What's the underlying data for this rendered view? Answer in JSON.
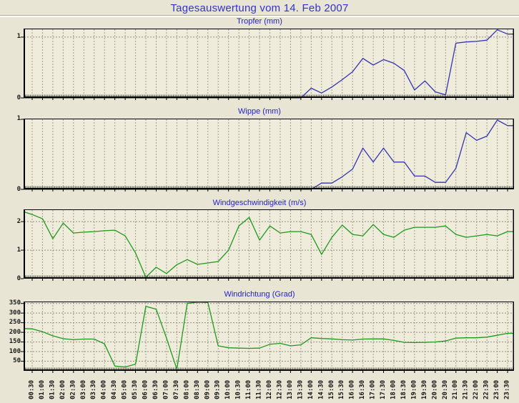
{
  "page": {
    "title": "Tagesauswertung vom 14. Feb 2007"
  },
  "colors": {
    "page_background": "#e8e5d4",
    "plot_background": "#efecdc",
    "title_blue": "#3333cc",
    "chart_title_blue": "#2323c8",
    "rain_line_blue": "#3434b4",
    "wind_line_green": "#1d991d",
    "grid_gray": "#a19e8e",
    "axis_black": "#000000"
  },
  "x_labels": [
    "00:30",
    "01:00",
    "01:30",
    "02:00",
    "02:30",
    "03:00",
    "03:30",
    "04:00",
    "04:30",
    "05:00",
    "05:30",
    "06:00",
    "06:30",
    "07:00",
    "07:30",
    "08:00",
    "08:30",
    "09:00",
    "09:30",
    "10:00",
    "10:30",
    "11:00",
    "11:30",
    "12:00",
    "12:30",
    "13:00",
    "13:30",
    "14:00",
    "14:30",
    "15:00",
    "15:30",
    "16:00",
    "16:30",
    "17:00",
    "17:30",
    "18:00",
    "18:30",
    "19:00",
    "19:30",
    "20:00",
    "20:30",
    "21:00",
    "21:30",
    "22:00",
    "22:30",
    "23:00",
    "23:30"
  ],
  "chart_data": [
    {
      "type": "line",
      "title": "Tropfer (mm)",
      "ylabel": "mm",
      "color": "#3434b4",
      "ylim": [
        0,
        1.14
      ],
      "yticks": [
        {
          "v": 1,
          "label": "1"
        },
        {
          "v": 0,
          "label": "0"
        }
      ],
      "gridlines": [
        1
      ],
      "edge_start": 0,
      "values": [
        0,
        0,
        0,
        0,
        0,
        0,
        0,
        0,
        0,
        0,
        0,
        0,
        0,
        0,
        0,
        0,
        0,
        0,
        0,
        0,
        0,
        0,
        0,
        0,
        0,
        0,
        0,
        0.16,
        0.08,
        0.18,
        0.3,
        0.43,
        0.65,
        0.54,
        0.63,
        0.57,
        0.45,
        0.13,
        0.28,
        0.1,
        0.05,
        0.9,
        0.92,
        0.93,
        0.95,
        1.12,
        1.05
      ]
    },
    {
      "type": "line",
      "title": "Wippe (mm)",
      "ylabel": "mm",
      "color": "#3434b4",
      "ylim": [
        0,
        1.01
      ],
      "yticks": [
        {
          "v": 1,
          "label": "1"
        },
        {
          "v": 0,
          "label": "0"
        }
      ],
      "gridlines": [],
      "edge_start": 0,
      "values": [
        0,
        0,
        0,
        0,
        0,
        0,
        0,
        0,
        0,
        0,
        0,
        0,
        0,
        0,
        0,
        0,
        0,
        0,
        0,
        0,
        0,
        0,
        0,
        0,
        0,
        0,
        0,
        0,
        0.09,
        0.09,
        0.18,
        0.29,
        0.59,
        0.39,
        0.59,
        0.39,
        0.39,
        0.19,
        0.19,
        0.1,
        0.1,
        0.3,
        0.81,
        0.7,
        0.76,
        0.99,
        0.91
      ]
    },
    {
      "type": "line",
      "title": "Windgeschwindigkeit (m/s)",
      "ylabel": "m/s",
      "color": "#1d991d",
      "ylim": [
        0,
        2.43
      ],
      "yticks": [
        {
          "v": 2,
          "label": "2"
        },
        {
          "v": 1,
          "label": "1"
        },
        {
          "v": 0,
          "label": "0"
        }
      ],
      "gridlines": [
        1,
        2
      ],
      "edge_start": 2.35,
      "values": [
        2.25,
        2.1,
        1.4,
        1.95,
        1.6,
        1.63,
        1.65,
        1.68,
        1.7,
        1.5,
        0.9,
        0.05,
        0.4,
        0.18,
        0.49,
        0.67,
        0.5,
        0.55,
        0.6,
        1.0,
        1.85,
        2.15,
        1.35,
        1.85,
        1.6,
        1.65,
        1.65,
        1.55,
        0.85,
        1.45,
        1.88,
        1.55,
        1.5,
        1.9,
        1.55,
        1.45,
        1.7,
        1.8,
        1.8,
        1.8,
        1.85,
        1.55,
        1.45,
        1.5,
        1.55,
        1.5,
        1.65
      ]
    },
    {
      "type": "line",
      "title": "Windrichtung (Grad)",
      "ylabel": "Grad",
      "color": "#1d991d",
      "ylim": [
        0,
        360
      ],
      "yticks": [
        {
          "v": 350,
          "label": "350"
        },
        {
          "v": 300,
          "label": "300"
        },
        {
          "v": 250,
          "label": "250"
        },
        {
          "v": 200,
          "label": "200"
        },
        {
          "v": 150,
          "label": "150"
        },
        {
          "v": 100,
          "label": "100"
        },
        {
          "v": 50,
          "label": "50"
        }
      ],
      "gridlines": [
        50,
        100,
        150,
        200,
        250,
        300,
        350
      ],
      "edge_start": 220,
      "values": [
        218,
        203,
        182,
        167,
        162,
        165,
        165,
        140,
        25,
        20,
        35,
        335,
        320,
        170,
        8,
        350,
        357,
        355,
        130,
        120,
        118,
        117,
        118,
        138,
        143,
        130,
        135,
        172,
        168,
        166,
        162,
        160,
        165,
        166,
        166,
        158,
        148,
        147,
        148,
        150,
        155,
        170,
        172,
        172,
        175,
        185,
        195
      ]
    }
  ]
}
